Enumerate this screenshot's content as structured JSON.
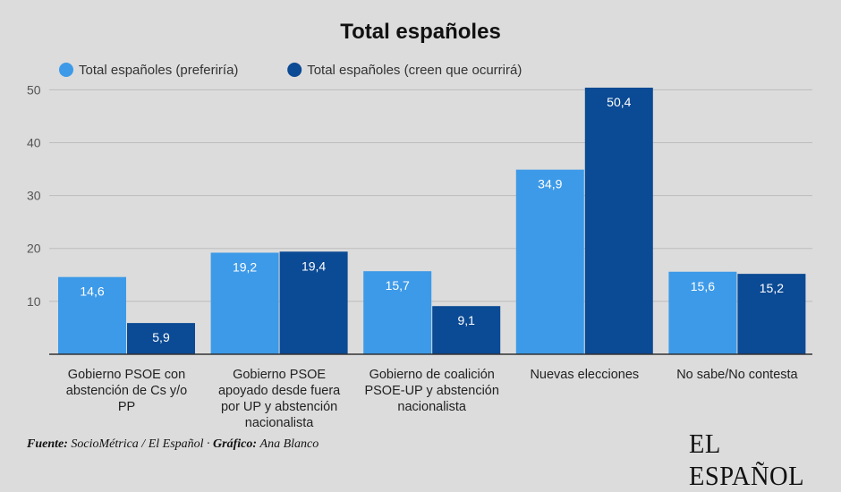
{
  "chart_data": {
    "type": "bar",
    "title": "Total españoles",
    "categories": [
      [
        "Gobierno PSOE con",
        "abstención de Cs y/o",
        "PP"
      ],
      [
        "Gobierno PSOE",
        "apoyado desde fuera",
        "por UP y abstención",
        "nacionalista"
      ],
      [
        "Gobierno de coalición",
        "PSOE-UP y abstención",
        "nacionalista"
      ],
      [
        "Nuevas elecciones"
      ],
      [
        "No sabe/No contesta"
      ]
    ],
    "series": [
      {
        "name": "Total españoles (preferiría)",
        "color": "#3d9ae8",
        "values": [
          14.6,
          19.2,
          15.7,
          34.9,
          15.6
        ],
        "labels": [
          "14,6",
          "19,2",
          "15,7",
          "34,9",
          "15,6"
        ]
      },
      {
        "name": "Total españoles (creen que ocurrirá)",
        "color": "#0b4a94",
        "values": [
          5.9,
          19.4,
          9.1,
          50.4,
          15.2
        ],
        "labels": [
          "5,9",
          "19,4",
          "9,1",
          "50,4",
          "15,2"
        ]
      }
    ],
    "yticks": [
      10,
      20,
      30,
      40,
      50
    ],
    "ylim": [
      0,
      50.4
    ],
    "grid": true,
    "legend": "top-left"
  },
  "source": {
    "fuente_label": "Fuente:",
    "fuente_text": "SocioMétrica / El Español · ",
    "grafico_label": "Gráfico:",
    "grafico_text": "Ana Blanco"
  },
  "logo": "EL ESPAÑOL"
}
